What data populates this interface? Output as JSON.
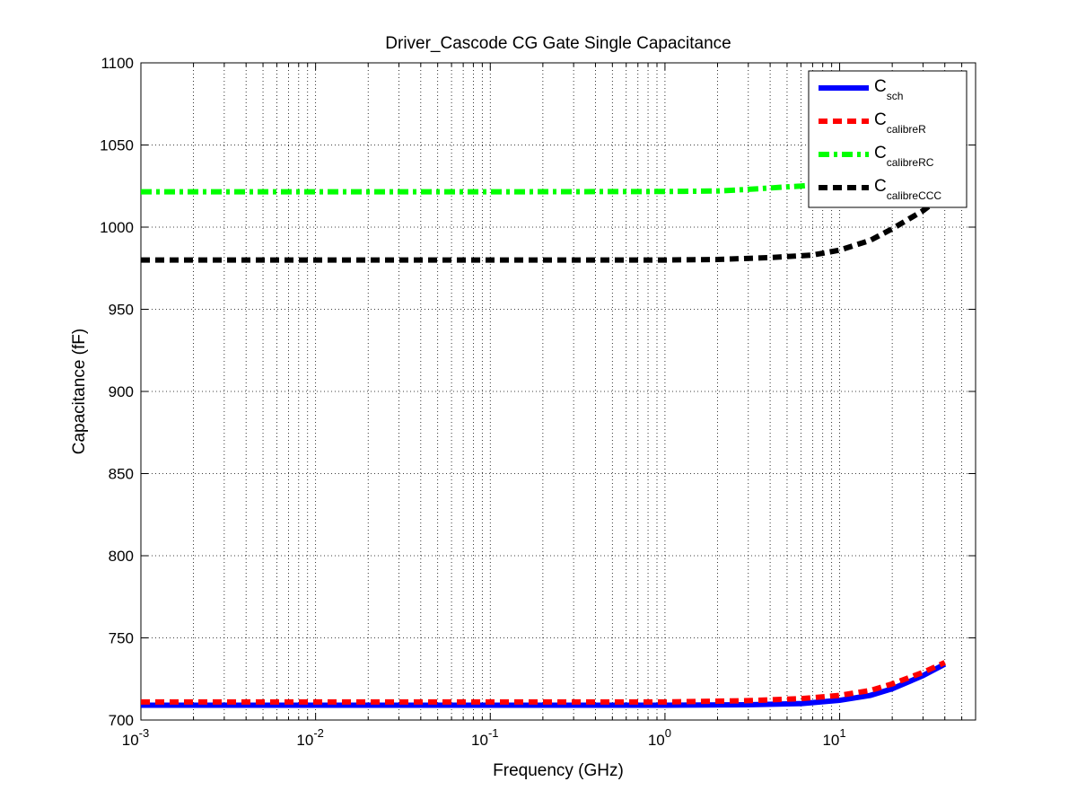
{
  "chart_data": {
    "type": "line",
    "title": "Driver_Cascode CG Gate Single Capacitance",
    "xlabel": "Frequency (GHz)",
    "ylabel": "Capacitance (fF)",
    "x_scale": "log",
    "xlim": [
      0.001,
      60
    ],
    "ylim": [
      700,
      1100
    ],
    "grid": true,
    "legend_position": "top-right",
    "x_ticks": [
      {
        "value": 0.001,
        "base": "10",
        "exp": "-3"
      },
      {
        "value": 0.01,
        "base": "10",
        "exp": "-2"
      },
      {
        "value": 0.1,
        "base": "10",
        "exp": "-1"
      },
      {
        "value": 1,
        "base": "10",
        "exp": "0"
      },
      {
        "value": 10,
        "base": "10",
        "exp": "1"
      }
    ],
    "y_ticks": [
      {
        "value": 700,
        "label": "700"
      },
      {
        "value": 750,
        "label": "750"
      },
      {
        "value": 800,
        "label": "800"
      },
      {
        "value": 850,
        "label": "850"
      },
      {
        "value": 900,
        "label": "900"
      },
      {
        "value": 950,
        "label": "950"
      },
      {
        "value": 1000,
        "label": "1000"
      },
      {
        "value": 1050,
        "label": "1050"
      },
      {
        "value": 1100,
        "label": "1100"
      }
    ],
    "series": [
      {
        "key": "sch",
        "legend_main": "C",
        "legend_sub": "sch",
        "color": "#0000ff",
        "style": "solid",
        "points": [
          [
            0.001,
            709
          ],
          [
            0.1,
            709
          ],
          [
            1,
            709
          ],
          [
            3,
            709.3
          ],
          [
            6,
            710
          ],
          [
            10,
            712
          ],
          [
            15,
            715
          ],
          [
            20,
            719
          ],
          [
            30,
            727
          ],
          [
            40,
            734
          ]
        ]
      },
      {
        "key": "calibreR",
        "legend_main": "C",
        "legend_sub": "calibreR",
        "color": "#ff0000",
        "style": "dashed",
        "points": [
          [
            0.001,
            711
          ],
          [
            0.1,
            711
          ],
          [
            1,
            711
          ],
          [
            3,
            711.8
          ],
          [
            6,
            713
          ],
          [
            10,
            715
          ],
          [
            15,
            718
          ],
          [
            20,
            722
          ],
          [
            30,
            729
          ],
          [
            40,
            735
          ]
        ]
      },
      {
        "key": "calibreRC",
        "legend_main": "C",
        "legend_sub": "calibreRC",
        "color": "#00ff00",
        "style": "dashdot",
        "points": [
          [
            0.001,
            1021.5
          ],
          [
            0.1,
            1021.5
          ],
          [
            1,
            1021.7
          ],
          [
            2,
            1022
          ],
          [
            3,
            1023
          ],
          [
            5,
            1024.5
          ],
          [
            6,
            1025
          ],
          [
            10,
            1027
          ],
          [
            20,
            1030
          ],
          [
            40,
            1035
          ]
        ]
      },
      {
        "key": "calibreCCC",
        "legend_main": "C",
        "legend_sub": "calibreCCC",
        "color": "#000000",
        "style": "dashed",
        "points": [
          [
            0.001,
            980
          ],
          [
            0.1,
            980
          ],
          [
            1,
            980
          ],
          [
            2,
            980.3
          ],
          [
            4,
            981.5
          ],
          [
            7,
            983
          ],
          [
            10,
            986
          ],
          [
            15,
            992
          ],
          [
            20,
            999
          ],
          [
            30,
            1010
          ],
          [
            40,
            1020
          ]
        ]
      }
    ]
  }
}
